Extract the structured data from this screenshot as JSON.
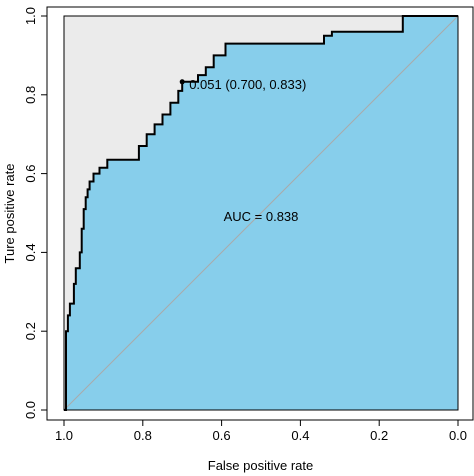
{
  "chart_data": {
    "type": "line",
    "subtype": "roc-curve",
    "title": "",
    "xlabel": "False positive rate",
    "ylabel": "Ture positive rate",
    "x_reversed": true,
    "xlim": [
      1.0,
      0.0
    ],
    "ylim": [
      0.0,
      1.0
    ],
    "xticks": [
      1.0,
      0.8,
      0.6,
      0.4,
      0.2,
      0.0
    ],
    "xtick_labels": [
      "1.0",
      "0.8",
      "0.6",
      "0.4",
      "0.2",
      "0.0"
    ],
    "yticks": [
      0.0,
      0.2,
      0.4,
      0.6,
      0.8,
      1.0
    ],
    "ytick_labels": [
      "0.0",
      "0.2",
      "0.4",
      "0.6",
      "0.8",
      "1.0"
    ],
    "grid": false,
    "legend": "none",
    "auc_label": "AUC = 0.838",
    "threshold_point": {
      "x": 0.7,
      "y": 0.833,
      "label": "0.051 (0.700, 0.833)"
    },
    "colors": {
      "auc_fill": "#87ceeb",
      "upper_fill": "#ebebeb",
      "curve": "#000000",
      "diagonal": "#aaaaaa"
    },
    "roc_curve": {
      "x": [
        1.0,
        0.995,
        0.995,
        0.99,
        0.99,
        0.985,
        0.985,
        0.975,
        0.975,
        0.97,
        0.97,
        0.96,
        0.96,
        0.955,
        0.955,
        0.95,
        0.95,
        0.945,
        0.945,
        0.94,
        0.94,
        0.935,
        0.935,
        0.925,
        0.925,
        0.91,
        0.91,
        0.89,
        0.89,
        0.81,
        0.81,
        0.79,
        0.79,
        0.77,
        0.77,
        0.75,
        0.75,
        0.73,
        0.73,
        0.71,
        0.71,
        0.7,
        0.7,
        0.66,
        0.66,
        0.64,
        0.64,
        0.62,
        0.62,
        0.59,
        0.59,
        0.34,
        0.34,
        0.32,
        0.32,
        0.14,
        0.14,
        0.0
      ],
      "y": [
        0.0,
        0.0,
        0.2,
        0.2,
        0.24,
        0.24,
        0.27,
        0.27,
        0.32,
        0.32,
        0.36,
        0.36,
        0.4,
        0.4,
        0.46,
        0.46,
        0.51,
        0.51,
        0.54,
        0.54,
        0.56,
        0.56,
        0.58,
        0.58,
        0.6,
        0.6,
        0.615,
        0.615,
        0.635,
        0.635,
        0.67,
        0.67,
        0.7,
        0.7,
        0.725,
        0.725,
        0.75,
        0.75,
        0.78,
        0.78,
        0.81,
        0.81,
        0.833,
        0.833,
        0.85,
        0.85,
        0.87,
        0.87,
        0.9,
        0.9,
        0.93,
        0.93,
        0.95,
        0.95,
        0.96,
        0.96,
        1.0,
        1.0
      ]
    }
  }
}
